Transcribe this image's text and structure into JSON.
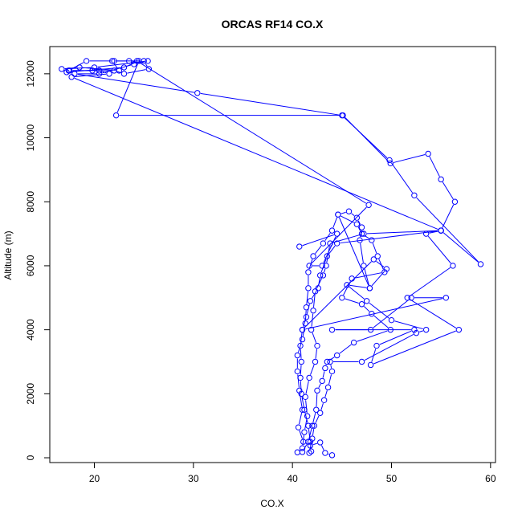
{
  "chart_data": {
    "type": "line",
    "title": "ORCAS RF14 CO.X",
    "xlabel": "CO.X",
    "ylabel": "Altitude (m)",
    "xlim": [
      15.5,
      60.5
    ],
    "ylim": [
      -150,
      12850
    ],
    "x_ticks": [
      20,
      30,
      40,
      50,
      60
    ],
    "y_ticks": [
      0,
      2000,
      4000,
      6000,
      8000,
      10000,
      12000
    ],
    "grid": false,
    "legend": "none",
    "series_color": "#0000ff",
    "series": [
      {
        "points": [
          [
            44.0,
            80
          ],
          [
            43.3,
            150
          ],
          [
            42.8,
            480
          ],
          [
            41.8,
            380
          ],
          [
            41.1,
            500
          ],
          [
            40.6,
            950
          ],
          [
            41.0,
            1500
          ],
          [
            40.7,
            2100
          ],
          [
            40.5,
            2700
          ],
          [
            40.5,
            3200
          ],
          [
            41.0,
            3700
          ],
          [
            41.3,
            4200
          ],
          [
            41.4,
            4700
          ],
          [
            41.6,
            5300
          ],
          [
            41.6,
            5800
          ],
          [
            42.1,
            6300
          ],
          [
            43.1,
            6700
          ],
          [
            44.0,
            7100
          ],
          [
            44.6,
            7600
          ],
          [
            46.5,
            7300
          ],
          [
            47.0,
            7000
          ],
          [
            48.0,
            6800
          ],
          [
            48.6,
            6300
          ],
          [
            49.3,
            5800
          ],
          [
            46.0,
            5600
          ],
          [
            45.0,
            5000
          ],
          [
            47.0,
            4800
          ],
          [
            48.0,
            4500
          ],
          [
            49.9,
            4000
          ],
          [
            46.2,
            3600
          ],
          [
            44.5,
            3200
          ],
          [
            43.5,
            3000
          ],
          [
            43.3,
            2800
          ],
          [
            43.0,
            2400
          ],
          [
            42.5,
            2100
          ],
          [
            42.4,
            1500
          ],
          [
            42.0,
            1000
          ],
          [
            41.6,
            500
          ],
          [
            41.0,
            180
          ],
          [
            40.5,
            170
          ],
          [
            41.0,
            300
          ],
          [
            41.2,
            800
          ],
          [
            41.5,
            1300
          ],
          [
            41.3,
            1900
          ],
          [
            41.7,
            2500
          ],
          [
            42.3,
            3000
          ],
          [
            42.5,
            3500
          ],
          [
            41.9,
            4000
          ],
          [
            42.1,
            4600
          ],
          [
            42.3,
            5200
          ],
          [
            43.1,
            5700
          ],
          [
            43.4,
            6000
          ],
          [
            43.8,
            6700
          ],
          [
            47.2,
            7000
          ],
          [
            55.0,
            7100
          ],
          [
            44.5,
            6700
          ],
          [
            43.5,
            6300
          ],
          [
            42.8,
            5700
          ],
          [
            42.6,
            5300
          ],
          [
            41.8,
            4900
          ],
          [
            41.4,
            4400
          ],
          [
            41.0,
            4000
          ],
          [
            40.8,
            3500
          ],
          [
            40.9,
            3000
          ],
          [
            40.8,
            2500
          ],
          [
            40.9,
            2000
          ],
          [
            41.2,
            1500
          ],
          [
            41.6,
            1000
          ],
          [
            41.8,
            500
          ],
          [
            41.9,
            200
          ],
          [
            41.7,
            150
          ],
          [
            42.0,
            600
          ],
          [
            42.2,
            1000
          ],
          [
            42.8,
            1400
          ],
          [
            43.2,
            1800
          ],
          [
            43.6,
            2200
          ],
          [
            44.0,
            2700
          ],
          [
            43.8,
            3000
          ],
          [
            47.0,
            3000
          ],
          [
            52.5,
            3900
          ],
          [
            53.5,
            4000
          ],
          [
            50.0,
            4300
          ],
          [
            47.5,
            4900
          ],
          [
            45.5,
            5400
          ],
          [
            47.8,
            5300
          ],
          [
            47.2,
            6000
          ],
          [
            46.8,
            6800
          ],
          [
            47.0,
            7200
          ],
          [
            46.5,
            7500
          ],
          [
            45.7,
            7700
          ],
          [
            44.6,
            7600
          ],
          [
            47.8,
            5300
          ],
          [
            49.5,
            5900
          ],
          [
            48.2,
            6200
          ],
          [
            41.0,
            4000
          ],
          [
            55.5,
            5000
          ],
          [
            52.0,
            5000
          ],
          [
            47.9,
            4000
          ],
          [
            44.0,
            4000
          ],
          [
            52.3,
            4000
          ],
          [
            48.5,
            3500
          ],
          [
            47.9,
            2900
          ],
          [
            56.8,
            4000
          ],
          [
            51.6,
            5000
          ],
          [
            56.2,
            6000
          ],
          [
            53.5,
            7000
          ],
          [
            55.0,
            7100
          ],
          [
            56.4,
            8000
          ],
          [
            55.0,
            8700
          ],
          [
            53.7,
            9500
          ],
          [
            49.9,
            9200
          ],
          [
            45.1,
            10700
          ],
          [
            22.2,
            10700
          ],
          [
            24.5,
            12400
          ],
          [
            23.0,
            12200
          ],
          [
            17.2,
            12050
          ],
          [
            17.4,
            12100
          ],
          [
            19.2,
            12400
          ],
          [
            22.0,
            12400
          ],
          [
            25.0,
            12400
          ],
          [
            25.5,
            12150
          ],
          [
            23.0,
            12000
          ],
          [
            22.0,
            12100
          ],
          [
            19.8,
            12100
          ],
          [
            17.5,
            12100
          ],
          [
            20.5,
            12100
          ],
          [
            21.5,
            12000
          ],
          [
            17.7,
            11900
          ],
          [
            55.0,
            7100
          ],
          [
            59.0,
            6050
          ],
          [
            52.3,
            8200
          ],
          [
            49.8,
            9300
          ],
          [
            45.0,
            10700
          ],
          [
            30.4,
            11400
          ],
          [
            18.0,
            12000
          ],
          [
            20.5,
            12000
          ],
          [
            24.0,
            12300
          ],
          [
            25.4,
            12400
          ],
          [
            20.0,
            12200
          ],
          [
            16.7,
            12150
          ],
          [
            18.5,
            12200
          ],
          [
            22.5,
            12100
          ],
          [
            21.8,
            12400
          ],
          [
            23.5,
            12400
          ],
          [
            24.3,
            12400
          ],
          [
            47.7,
            7900
          ],
          [
            41.7,
            6000
          ],
          [
            43.0,
            6000
          ],
          [
            44.5,
            7000
          ],
          [
            40.7,
            6600
          ]
        ]
      }
    ]
  }
}
